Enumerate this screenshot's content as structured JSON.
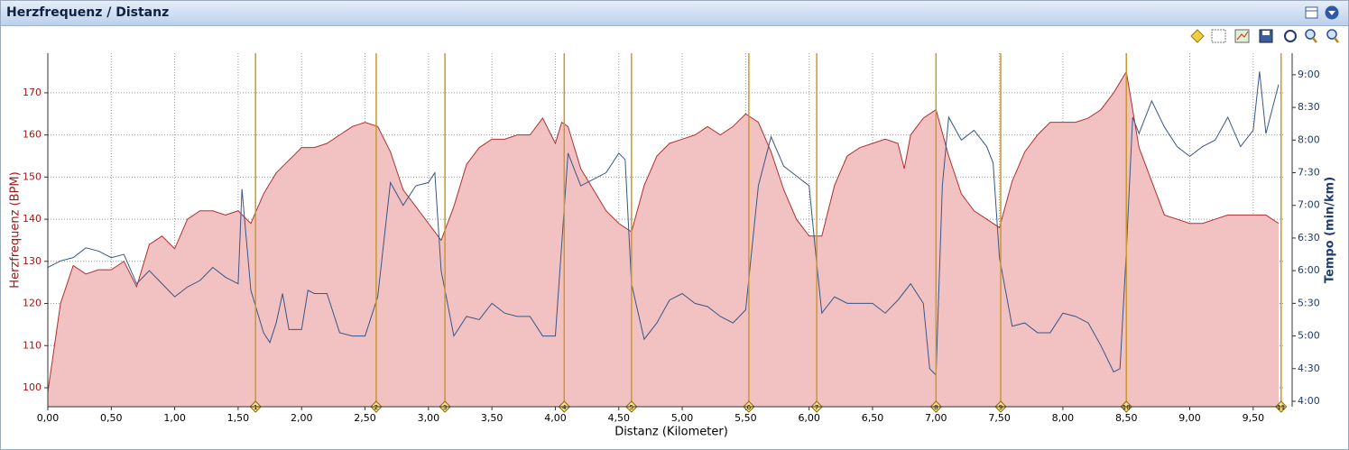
{
  "window": {
    "title": "Herzfrequenz / Distanz"
  },
  "chart_data": {
    "type": "combo",
    "x_label": "Distanz (Kilometer)",
    "y_label": "Herzfrequenz (BPM)",
    "y2_label": "Tempo (min/km)",
    "grid": true,
    "xlim": [
      0,
      9.75
    ],
    "ylim": [
      95.5,
      179.4
    ],
    "y2lim": [
      3.917,
      9.33
    ],
    "xticks": [
      {
        "value": 0,
        "label": "0,00"
      },
      {
        "value": 0.5,
        "label": "0,50"
      },
      {
        "value": 1,
        "label": "1,00"
      },
      {
        "value": 1.5,
        "label": "1,50"
      },
      {
        "value": 2,
        "label": "2,00"
      },
      {
        "value": 2.5,
        "label": "2,50"
      },
      {
        "value": 3,
        "label": "3,00"
      },
      {
        "value": 3.5,
        "label": "3,50"
      },
      {
        "value": 4,
        "label": "4,00"
      },
      {
        "value": 4.5,
        "label": "4,50"
      },
      {
        "value": 5,
        "label": "5,00"
      },
      {
        "value": 5.5,
        "label": "5,50"
      },
      {
        "value": 6,
        "label": "6,00"
      },
      {
        "value": 6.5,
        "label": "6,50"
      },
      {
        "value": 7,
        "label": "7,00"
      },
      {
        "value": 7.5,
        "label": "7,50"
      },
      {
        "value": 8,
        "label": "8,00"
      },
      {
        "value": 8.5,
        "label": "8,50"
      },
      {
        "value": 9,
        "label": "9,00"
      },
      {
        "value": 9.5,
        "label": "9,50"
      }
    ],
    "yticks": [
      100,
      110,
      120,
      130,
      140,
      150,
      160,
      170
    ],
    "y2ticks": [
      {
        "value": 4,
        "label": "4:00"
      },
      {
        "value": 4.5,
        "label": "4:30"
      },
      {
        "value": 5,
        "label": "5:00"
      },
      {
        "value": 5.5,
        "label": "5:30"
      },
      {
        "value": 6,
        "label": "6:00"
      },
      {
        "value": 6.5,
        "label": "6:30"
      },
      {
        "value": 7,
        "label": "7:00"
      },
      {
        "value": 7.5,
        "label": "7:30"
      },
      {
        "value": 8,
        "label": "8:00"
      },
      {
        "value": 8.5,
        "label": "8:30"
      },
      {
        "value": 9,
        "label": "9:00"
      }
    ],
    "series": [
      {
        "type": "area",
        "color": "#b03030",
        "fill": "#f2c2c2",
        "x": [
          0,
          0.1,
          0.2,
          0.3,
          0.4,
          0.5,
          0.6,
          0.7,
          0.8,
          0.9,
          1.0,
          1.1,
          1.2,
          1.3,
          1.4,
          1.5,
          1.6,
          1.7,
          1.8,
          1.9,
          2.0,
          2.1,
          2.2,
          2.3,
          2.4,
          2.5,
          2.6,
          2.7,
          2.8,
          2.9,
          3.0,
          3.1,
          3.2,
          3.3,
          3.4,
          3.5,
          3.6,
          3.7,
          3.8,
          3.9,
          4.0,
          4.05,
          4.1,
          4.2,
          4.3,
          4.4,
          4.5,
          4.6,
          4.7,
          4.8,
          4.9,
          5.0,
          5.1,
          5.2,
          5.3,
          5.4,
          5.5,
          5.6,
          5.7,
          5.8,
          5.9,
          6.0,
          6.1,
          6.2,
          6.3,
          6.4,
          6.5,
          6.6,
          6.7,
          6.75,
          6.8,
          6.9,
          7.0,
          7.1,
          7.2,
          7.3,
          7.4,
          7.5,
          7.6,
          7.7,
          7.8,
          7.9,
          8.0,
          8.1,
          8.2,
          8.3,
          8.4,
          8.5,
          8.6,
          8.7,
          8.8,
          8.9,
          9.0,
          9.1,
          9.2,
          9.3,
          9.4,
          9.5,
          9.6,
          9.7
        ],
        "values": [
          99,
          120,
          129,
          127,
          128,
          128,
          130,
          124,
          134,
          136,
          133,
          140,
          142,
          142,
          141,
          142,
          139,
          146,
          151,
          154,
          157,
          157,
          158,
          160,
          162,
          163,
          162,
          156,
          147,
          143,
          139,
          135,
          143,
          153,
          157,
          159,
          159,
          160,
          160,
          164,
          158,
          163,
          162,
          152,
          147,
          142,
          139,
          137,
          148,
          155,
          158,
          159,
          160,
          162,
          160,
          162,
          165,
          163,
          156,
          147,
          140,
          136,
          136,
          148,
          155,
          157,
          158,
          159,
          158,
          152,
          160,
          164,
          166,
          155,
          146,
          142,
          140,
          138,
          149,
          156,
          160,
          163,
          163,
          163,
          164,
          166,
          170,
          175,
          157,
          149,
          141,
          140,
          139,
          139,
          140,
          141,
          141,
          141,
          141,
          139
        ]
      },
      {
        "type": "line",
        "axis": "y2",
        "color": "#3a5688",
        "x": [
          0,
          0.1,
          0.2,
          0.3,
          0.4,
          0.5,
          0.6,
          0.7,
          0.8,
          0.9,
          1.0,
          1.1,
          1.2,
          1.3,
          1.4,
          1.5,
          1.53,
          1.6,
          1.7,
          1.75,
          1.8,
          1.85,
          1.9,
          2.0,
          2.05,
          2.1,
          2.2,
          2.3,
          2.4,
          2.5,
          2.6,
          2.7,
          2.8,
          2.9,
          3.0,
          3.05,
          3.1,
          3.2,
          3.3,
          3.4,
          3.5,
          3.6,
          3.7,
          3.8,
          3.9,
          4.0,
          4.1,
          4.2,
          4.3,
          4.4,
          4.5,
          4.55,
          4.6,
          4.7,
          4.8,
          4.9,
          5.0,
          5.1,
          5.2,
          5.3,
          5.4,
          5.5,
          5.6,
          5.7,
          5.8,
          5.9,
          6.0,
          6.05,
          6.1,
          6.2,
          6.3,
          6.4,
          6.5,
          6.6,
          6.7,
          6.8,
          6.9,
          6.95,
          7.0,
          7.05,
          7.1,
          7.2,
          7.3,
          7.4,
          7.45,
          7.5,
          7.6,
          7.7,
          7.8,
          7.9,
          8.0,
          8.1,
          8.2,
          8.3,
          8.4,
          8.45,
          8.5,
          8.55,
          8.6,
          8.7,
          8.8,
          8.9,
          9.0,
          9.1,
          9.2,
          9.3,
          9.4,
          9.5,
          9.55,
          9.6,
          9.7
        ],
        "values": [
          6.05,
          6.15,
          6.2,
          6.35,
          6.3,
          6.2,
          6.25,
          5.8,
          6.0,
          5.8,
          5.6,
          5.75,
          5.85,
          6.05,
          5.9,
          5.8,
          7.25,
          5.7,
          5.05,
          4.9,
          5.2,
          5.65,
          5.1,
          5.1,
          5.7,
          5.65,
          5.65,
          5.05,
          5.0,
          5.0,
          5.6,
          7.35,
          7.0,
          7.3,
          7.35,
          7.5,
          6.0,
          5.0,
          5.3,
          5.25,
          5.5,
          5.35,
          5.3,
          5.3,
          5.0,
          5.0,
          7.8,
          7.3,
          7.4,
          7.5,
          7.8,
          7.7,
          5.8,
          4.95,
          5.2,
          5.55,
          5.65,
          5.5,
          5.45,
          5.3,
          5.2,
          5.4,
          7.3,
          8.05,
          7.6,
          7.45,
          7.3,
          6.3,
          5.35,
          5.6,
          5.5,
          5.5,
          5.5,
          5.35,
          5.55,
          5.8,
          5.5,
          4.5,
          4.4,
          7.3,
          8.35,
          8.0,
          8.15,
          7.9,
          7.65,
          6.2,
          5.15,
          5.2,
          5.05,
          5.05,
          5.35,
          5.3,
          5.2,
          4.85,
          4.45,
          4.5,
          6.3,
          8.35,
          8.1,
          8.6,
          8.2,
          7.9,
          7.75,
          7.9,
          8.0,
          8.35,
          7.9,
          8.15,
          9.05,
          8.1,
          8.85
        ]
      }
    ],
    "markers": {
      "color": "#c89a28",
      "x": [
        1.637,
        2.588,
        3.13,
        4.07,
        4.6,
        5.525,
        6.06,
        7.0,
        7.51,
        8.5,
        9.72
      ],
      "labels": [
        1,
        2,
        3,
        4,
        5,
        6,
        7,
        8,
        9,
        10,
        11
      ]
    }
  }
}
